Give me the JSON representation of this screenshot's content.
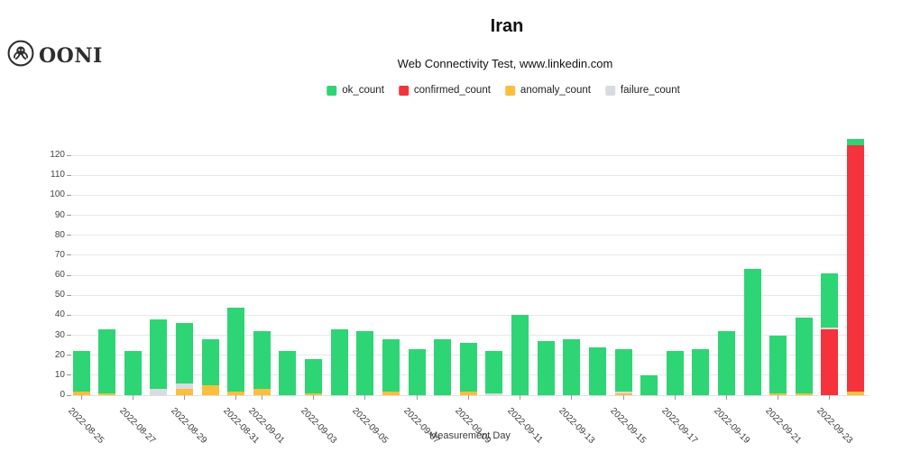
{
  "logo": {
    "wordmark": "OONI"
  },
  "header": {
    "title": "Iran",
    "subtitle": "Web Connectivity Test, www.linkedin.com"
  },
  "legend": [
    {
      "label": "ok_count",
      "color": "#2ED574"
    },
    {
      "label": "confirmed_count",
      "color": "#F4333C"
    },
    {
      "label": "anomaly_count",
      "color": "#FCBE3E"
    },
    {
      "label": "failure_count",
      "color": "#D8DCE1"
    }
  ],
  "chart_data": {
    "type": "bar",
    "stacked": true,
    "stack_order": "bottom_to_top",
    "title": "Iran",
    "subtitle": "Web Connectivity Test, www.linkedin.com",
    "xlabel": "Measurement Day",
    "ylabel": "",
    "ylim": [
      0,
      130
    ],
    "yticks": [
      0,
      10,
      20,
      30,
      40,
      50,
      60,
      70,
      80,
      90,
      100,
      110,
      120
    ],
    "grid": true,
    "legend_position": "top-center",
    "xtick_rule": "labels shown only for odd-numbered days, rotated 45deg",
    "categories": [
      "2022-08-25",
      "2022-08-26",
      "2022-08-27",
      "2022-08-28",
      "2022-08-29",
      "2022-08-30",
      "2022-08-31",
      "2022-09-01",
      "2022-09-02",
      "2022-09-03",
      "2022-09-04",
      "2022-09-05",
      "2022-09-06",
      "2022-09-07",
      "2022-09-08",
      "2022-09-09",
      "2022-09-10",
      "2022-09-11",
      "2022-09-12",
      "2022-09-13",
      "2022-09-14",
      "2022-09-15",
      "2022-09-16",
      "2022-09-17",
      "2022-09-18",
      "2022-09-19",
      "2022-09-20",
      "2022-09-21",
      "2022-09-22",
      "2022-09-23",
      "2022-09-24"
    ],
    "series": [
      {
        "name": "anomaly_count",
        "color": "#FCBE3E",
        "values": [
          2,
          1,
          0,
          0,
          3,
          5,
          2,
          3,
          0,
          1,
          0,
          0,
          2,
          0,
          0,
          2,
          0,
          0,
          0,
          0,
          0,
          1,
          0,
          0,
          0,
          0,
          0,
          1,
          1,
          0,
          2
        ]
      },
      {
        "name": "confirmed_count",
        "color": "#F4333C",
        "values": [
          0,
          0,
          0,
          0,
          0,
          0,
          0,
          0,
          0,
          0,
          0,
          0,
          0,
          0,
          0,
          0,
          0,
          0,
          0,
          0,
          0,
          0,
          0,
          0,
          0,
          0,
          0,
          0,
          0,
          33,
          123
        ]
      },
      {
        "name": "failure_count",
        "color": "#D8DCE1",
        "values": [
          0,
          0,
          0,
          3,
          3,
          0,
          0,
          0,
          0,
          0,
          0,
          0,
          0,
          0,
          0,
          0,
          1,
          0,
          0,
          0,
          0,
          1,
          0,
          0,
          0,
          0,
          0,
          0,
          0,
          1,
          0
        ]
      },
      {
        "name": "ok_count",
        "color": "#2ED574",
        "values": [
          20,
          32,
          22,
          35,
          30,
          23,
          42,
          29,
          22,
          17,
          33,
          32,
          26,
          23,
          28,
          24,
          21,
          40,
          27,
          28,
          24,
          21,
          10,
          22,
          23,
          32,
          63,
          29,
          38,
          27,
          3
        ]
      }
    ]
  }
}
